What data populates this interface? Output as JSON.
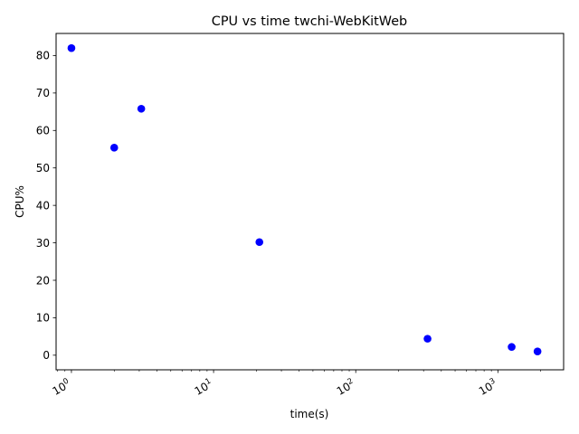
{
  "chart_data": {
    "type": "scatter",
    "title": "CPU vs time twchi-WebKitWeb",
    "xlabel": "time(s)",
    "ylabel": "CPU%",
    "x_scale": "log",
    "xlim": [
      0.78,
      2900
    ],
    "ylim": [
      -3.9,
      85.9
    ],
    "grid": false,
    "marker_color": "#0000ff",
    "x_ticks": [
      {
        "value": 1,
        "base": "10",
        "exp": "0"
      },
      {
        "value": 10,
        "base": "10",
        "exp": "1"
      },
      {
        "value": 100,
        "base": "10",
        "exp": "2"
      },
      {
        "value": 1000,
        "base": "10",
        "exp": "3"
      }
    ],
    "y_ticks": [
      "0",
      "10",
      "20",
      "30",
      "40",
      "50",
      "60",
      "70",
      "80"
    ],
    "points": [
      {
        "x": 1.0,
        "y": 82.0
      },
      {
        "x": 2.0,
        "y": 55.4
      },
      {
        "x": 3.1,
        "y": 65.8
      },
      {
        "x": 21.0,
        "y": 30.2
      },
      {
        "x": 320,
        "y": 4.4
      },
      {
        "x": 1250,
        "y": 2.2
      },
      {
        "x": 1900,
        "y": 1.0
      }
    ]
  }
}
